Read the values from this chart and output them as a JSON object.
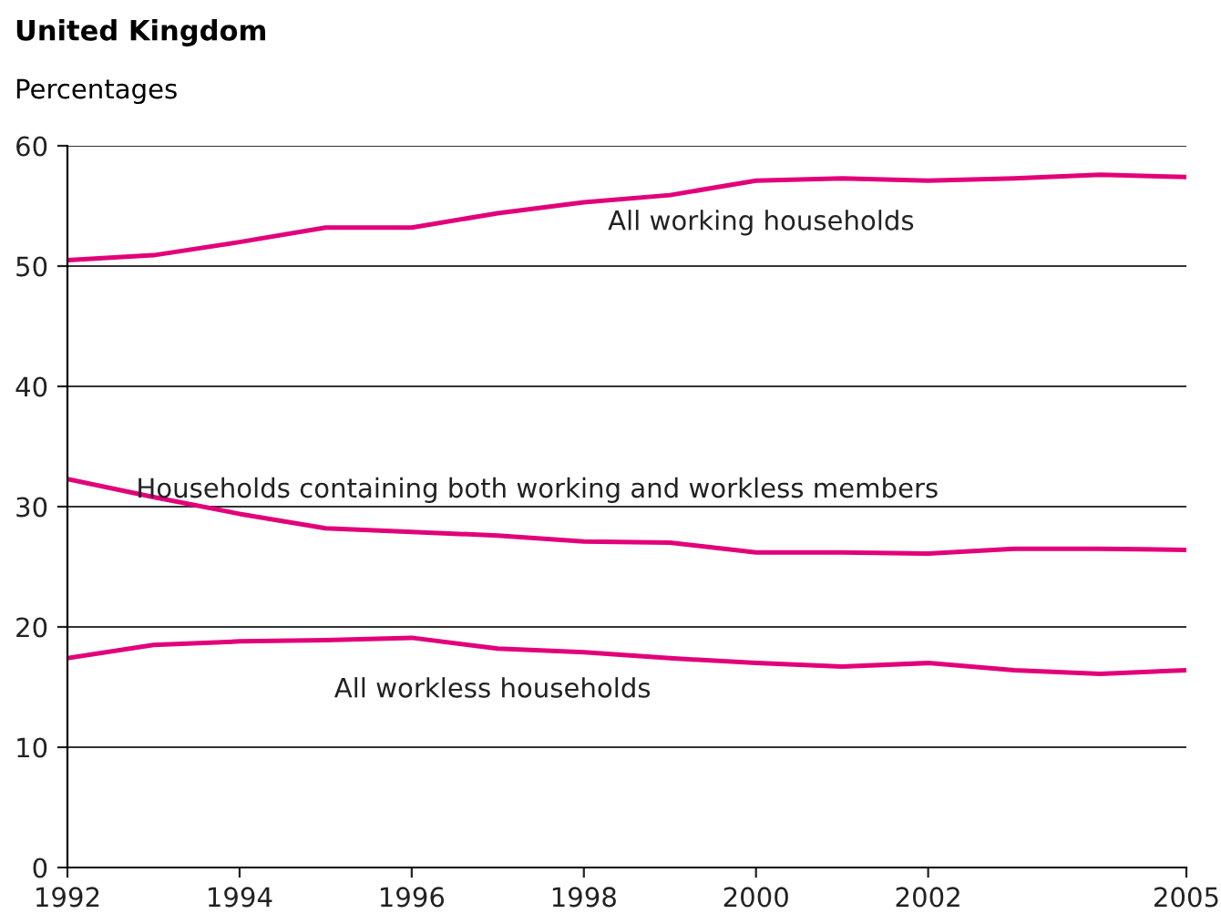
{
  "chart_data": {
    "type": "line",
    "title": "United Kingdom",
    "ylabel": "Percentages",
    "x": [
      1992,
      1993,
      1994,
      1995,
      1996,
      1997,
      1998,
      1999,
      2000,
      2001,
      2002,
      2003,
      2004,
      2005
    ],
    "series": [
      {
        "name": "All working households",
        "color": "#e2007a",
        "values": [
          50.5,
          50.9,
          52.0,
          53.2,
          53.2,
          54.4,
          55.3,
          55.9,
          57.1,
          57.3,
          57.1,
          57.3,
          57.6,
          57.4
        ]
      },
      {
        "name": "Households containing both working and workless members",
        "color": "#e2007a",
        "values": [
          32.3,
          30.8,
          29.4,
          28.2,
          27.9,
          27.6,
          27.1,
          27.0,
          26.2,
          26.2,
          26.1,
          26.5,
          26.5,
          26.4
        ]
      },
      {
        "name": "All workless households",
        "color": "#e2007a",
        "values": [
          17.4,
          18.5,
          18.8,
          18.9,
          19.1,
          18.2,
          17.9,
          17.4,
          17.0,
          16.7,
          17.0,
          16.4,
          16.1,
          16.4
        ]
      }
    ],
    "xlim": [
      1992,
      2005
    ],
    "ylim": [
      0,
      60
    ],
    "xticks": [
      1992,
      1994,
      1996,
      1998,
      2000,
      2002,
      2005
    ],
    "yticks": [
      0,
      10,
      20,
      30,
      40,
      50,
      60
    ],
    "grid": "y",
    "legend": false,
    "marker": "none",
    "line_style": "solid"
  }
}
